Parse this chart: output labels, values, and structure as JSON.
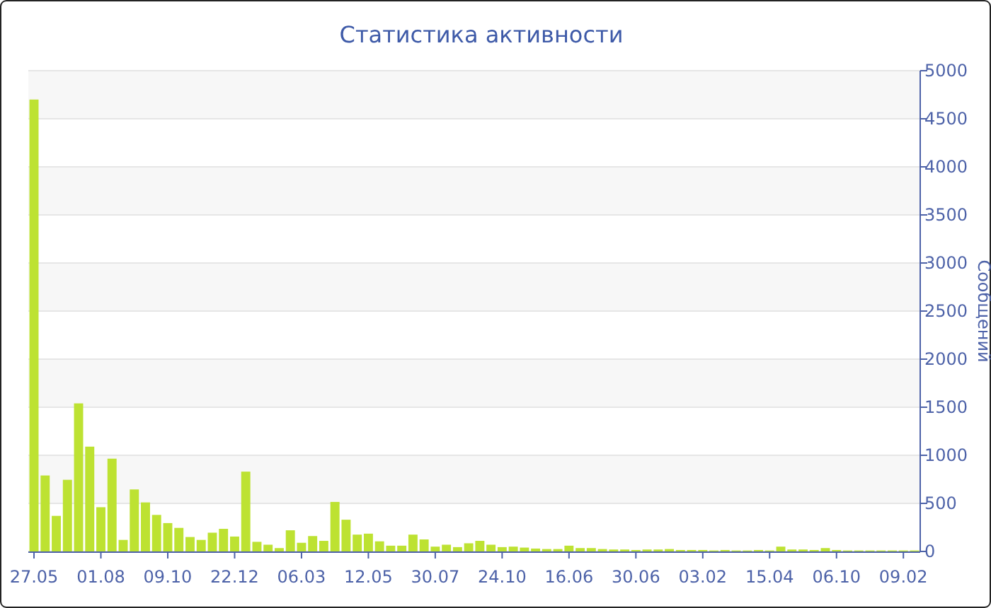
{
  "chart_data": {
    "type": "bar",
    "title": "Статистика активности",
    "ylabel": "Сообщений",
    "color": "#bde232",
    "categories": [
      "27.05",
      null,
      null,
      null,
      null,
      null,
      "01.08",
      null,
      null,
      null,
      null,
      null,
      "09.10",
      null,
      null,
      null,
      null,
      null,
      "22.12",
      null,
      null,
      null,
      null,
      null,
      "06.03",
      null,
      null,
      null,
      null,
      null,
      "12.05",
      null,
      null,
      null,
      null,
      null,
      "30.07",
      null,
      null,
      null,
      null,
      null,
      "24.10",
      null,
      null,
      null,
      null,
      null,
      "16.06",
      null,
      null,
      null,
      null,
      null,
      "30.06",
      null,
      null,
      null,
      null,
      null,
      "03.02",
      null,
      null,
      null,
      null,
      null,
      "15.04",
      null,
      null,
      null,
      null,
      null,
      "06.10",
      null,
      null,
      null,
      null,
      null,
      "09.02",
      null
    ],
    "values": [
      4700,
      790,
      370,
      745,
      1540,
      1090,
      460,
      965,
      120,
      645,
      510,
      380,
      295,
      245,
      150,
      120,
      195,
      235,
      155,
      830,
      100,
      70,
      35,
      220,
      90,
      160,
      110,
      515,
      330,
      175,
      185,
      105,
      60,
      60,
      175,
      125,
      50,
      70,
      45,
      85,
      110,
      70,
      45,
      50,
      40,
      30,
      25,
      25,
      60,
      35,
      35,
      25,
      20,
      20,
      15,
      20,
      20,
      25,
      15,
      15,
      15,
      10,
      15,
      10,
      10,
      15,
      10,
      50,
      20,
      20,
      15,
      35,
      15,
      10,
      10,
      10,
      10,
      10,
      10,
      10
    ],
    "ylim": [
      0,
      5000
    ],
    "yticks": [
      0,
      500,
      1000,
      1500,
      2000,
      2500,
      3000,
      3500,
      4000,
      4500,
      5000
    ],
    "grid": "y"
  }
}
